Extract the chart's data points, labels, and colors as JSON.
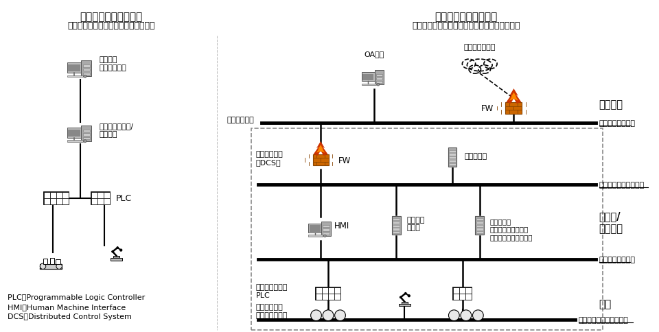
{
  "title_left": "小規模な制御システム",
  "subtitle_left": "（主に工場の生産ラインの制御など）",
  "title_right": "大規模な制御システム",
  "subtitle_right": "（主に電力、ガス、化学のプロセス制御など）",
  "legend_plc": "PLC：Programmable Logic Controller",
  "legend_hmi": "HMI：Human Machine Interface",
  "legend_dcs": "DCS：Distributed Control System",
  "bg_color": "#ffffff",
  "network_label_info": "情報ネットワーク",
  "network_label_info_ctrl": "情報制御ネットワーク",
  "network_label_ctrl": "制御ネットワーク",
  "network_label_field": "フィールドネットワーク",
  "label_office": "オフィス",
  "label_monitor_room": "監視室/\n計算機室",
  "label_field": "現場",
  "label_factory_mgmt": "工場管理\n（生産管理）",
  "label_prod_line": "生産ライン管理/\n監視制御",
  "label_plc": "PLC",
  "label_oa": "OA端末",
  "label_internet": "インターネット",
  "label_info_sys": "情報システム",
  "label_fw_upper": "FW",
  "label_fw_lower": "FW",
  "label_dcs": "制御システム\n（DCS）",
  "label_log_server": "ログサーバ",
  "label_hmi": "HMI",
  "label_monitor_server": "監視制御\nサーバ",
  "label_maintenance_server": "保守サーバ\n（エンジニアリング\nワークステーション）",
  "label_controller_plc": "コントローラ・\nPLC",
  "label_sensor": "センサ・アク\nチュェータなど"
}
